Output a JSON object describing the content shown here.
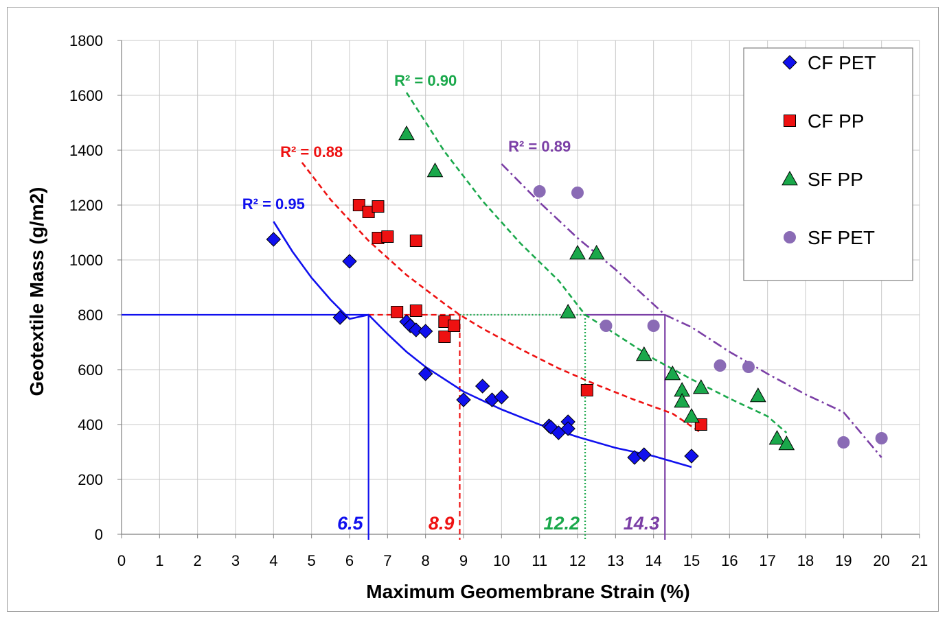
{
  "chart_data": {
    "type": "scatter",
    "xlabel": "Maximum Geomembrane Strain (%)",
    "ylabel": "Geotextile Mass (g/m2)",
    "xlim": [
      0,
      21
    ],
    "ylim": [
      0,
      1800
    ],
    "xticks": [
      "0",
      "1",
      "2",
      "3",
      "4",
      "5",
      "6",
      "7",
      "8",
      "9",
      "10",
      "11",
      "12",
      "13",
      "14",
      "15",
      "16",
      "17",
      "18",
      "19",
      "20",
      "21"
    ],
    "yticks": [
      "0",
      "200",
      "400",
      "600",
      "800",
      "1000",
      "1200",
      "1400",
      "1600",
      "1800"
    ],
    "grid": "horizontal and vertical",
    "legend_position": "top-right",
    "series": [
      {
        "name": "CF PET",
        "marker": "diamond",
        "color": "#1010ee",
        "points": [
          [
            4.0,
            1075
          ],
          [
            5.75,
            790
          ],
          [
            6.0,
            995
          ],
          [
            7.5,
            775
          ],
          [
            7.6,
            760
          ],
          [
            7.75,
            745
          ],
          [
            8.0,
            740
          ],
          [
            8.0,
            585
          ],
          [
            9.0,
            490
          ],
          [
            9.5,
            540
          ],
          [
            9.75,
            490
          ],
          [
            10.0,
            500
          ],
          [
            11.25,
            395
          ],
          [
            11.3,
            390
          ],
          [
            11.5,
            370
          ],
          [
            11.75,
            410
          ],
          [
            11.75,
            385
          ],
          [
            13.5,
            280
          ],
          [
            13.75,
            290
          ],
          [
            15.0,
            285
          ]
        ],
        "trend": {
          "type": "solid",
          "label": "R² = 0.95",
          "curve": [
            [
              4.0,
              1140
            ],
            [
              4.5,
              1030
            ],
            [
              5.0,
              935
            ],
            [
              5.5,
              855
            ],
            [
              6.0,
              785
            ],
            [
              6.5,
              800
            ],
            [
              7.0,
              730
            ],
            [
              7.5,
              665
            ],
            [
              8.0,
              610
            ],
            [
              9.0,
              520
            ],
            [
              10.0,
              455
            ],
            [
              11.0,
              400
            ],
            [
              12.0,
              355
            ],
            [
              13.0,
              315
            ],
            [
              14.0,
              285
            ],
            [
              15.0,
              245
            ]
          ]
        }
      },
      {
        "name": "CF PP",
        "marker": "square",
        "color": "#ee1111",
        "points": [
          [
            6.25,
            1200
          ],
          [
            6.5,
            1175
          ],
          [
            6.75,
            1195
          ],
          [
            6.75,
            1080
          ],
          [
            7.0,
            1085
          ],
          [
            7.75,
            1070
          ],
          [
            7.25,
            810
          ],
          [
            7.75,
            815
          ],
          [
            8.5,
            775
          ],
          [
            8.5,
            720
          ],
          [
            8.75,
            760
          ],
          [
            12.25,
            525
          ],
          [
            15.25,
            400
          ]
        ],
        "trend": {
          "type": "dashed",
          "label": "R² = 0.88",
          "curve": [
            [
              4.75,
              1355
            ],
            [
              5.5,
              1220
            ],
            [
              6.5,
              1070
            ],
            [
              7.5,
              945
            ],
            [
              8.5,
              840
            ],
            [
              8.9,
              800
            ],
            [
              9.5,
              750
            ],
            [
              10.5,
              675
            ],
            [
              11.5,
              605
            ],
            [
              12.5,
              545
            ],
            [
              13.5,
              490
            ],
            [
              14.5,
              440
            ],
            [
              15.25,
              370
            ]
          ]
        }
      },
      {
        "name": "SF PP",
        "marker": "triangle",
        "color": "#1aa84b",
        "points": [
          [
            7.5,
            1460
          ],
          [
            8.25,
            1325
          ],
          [
            11.75,
            810
          ],
          [
            12.0,
            1025
          ],
          [
            12.5,
            1025
          ],
          [
            13.75,
            655
          ],
          [
            14.5,
            585
          ],
          [
            14.75,
            525
          ],
          [
            14.75,
            485
          ],
          [
            15.0,
            430
          ],
          [
            15.25,
            535
          ],
          [
            16.75,
            505
          ],
          [
            17.25,
            350
          ],
          [
            17.5,
            330
          ]
        ],
        "trend": {
          "type": "dashed",
          "label": "R² = 0.90",
          "curve": [
            [
              7.5,
              1610
            ],
            [
              8.5,
              1395
            ],
            [
              9.5,
              1215
            ],
            [
              10.5,
              1060
            ],
            [
              11.5,
              925
            ],
            [
              12.2,
              800
            ],
            [
              13.0,
              730
            ],
            [
              14.0,
              640
            ],
            [
              15.0,
              565
            ],
            [
              16.0,
              495
            ],
            [
              17.0,
              430
            ],
            [
              17.5,
              370
            ]
          ]
        }
      },
      {
        "name": "SF PET",
        "marker": "circle",
        "color": "#8a6bb5",
        "points": [
          [
            11.0,
            1250
          ],
          [
            12.0,
            1245
          ],
          [
            12.75,
            760
          ],
          [
            14.0,
            760
          ],
          [
            15.75,
            615
          ],
          [
            16.5,
            610
          ],
          [
            19.0,
            335
          ],
          [
            20.0,
            350
          ]
        ],
        "trend": {
          "type": "dash-dot",
          "label": "R² = 0.89",
          "curve": [
            [
              10.0,
              1350
            ],
            [
              11.0,
              1210
            ],
            [
              12.0,
              1080
            ],
            [
              13.0,
              965
            ],
            [
              14.3,
              800
            ],
            [
              15.0,
              755
            ],
            [
              16.0,
              665
            ],
            [
              17.0,
              585
            ],
            [
              18.0,
              510
            ],
            [
              19.0,
              445
            ],
            [
              20.0,
              280
            ]
          ]
        }
      }
    ],
    "r2_labels": [
      "R² = 0.95",
      "R² = 0.88",
      "R² = 0.90",
      "R² = 0.89"
    ],
    "reference": {
      "y": 800,
      "markers": [
        {
          "label": "6.5",
          "x": 6.5,
          "color": "#1010ee",
          "style": "solid"
        },
        {
          "label": "8.9",
          "x": 8.9,
          "color": "#ee1111",
          "style": "dashed"
        },
        {
          "label": "12.2",
          "x": 12.2,
          "color": "#1aa84b",
          "style": "dotted"
        },
        {
          "label": "14.3",
          "x": 14.3,
          "color": "#7b3fa6",
          "style": "solid"
        }
      ]
    },
    "r2_colors": [
      "#1010ee",
      "#ee1111",
      "#1aa84b",
      "#7b3fa6"
    ]
  }
}
